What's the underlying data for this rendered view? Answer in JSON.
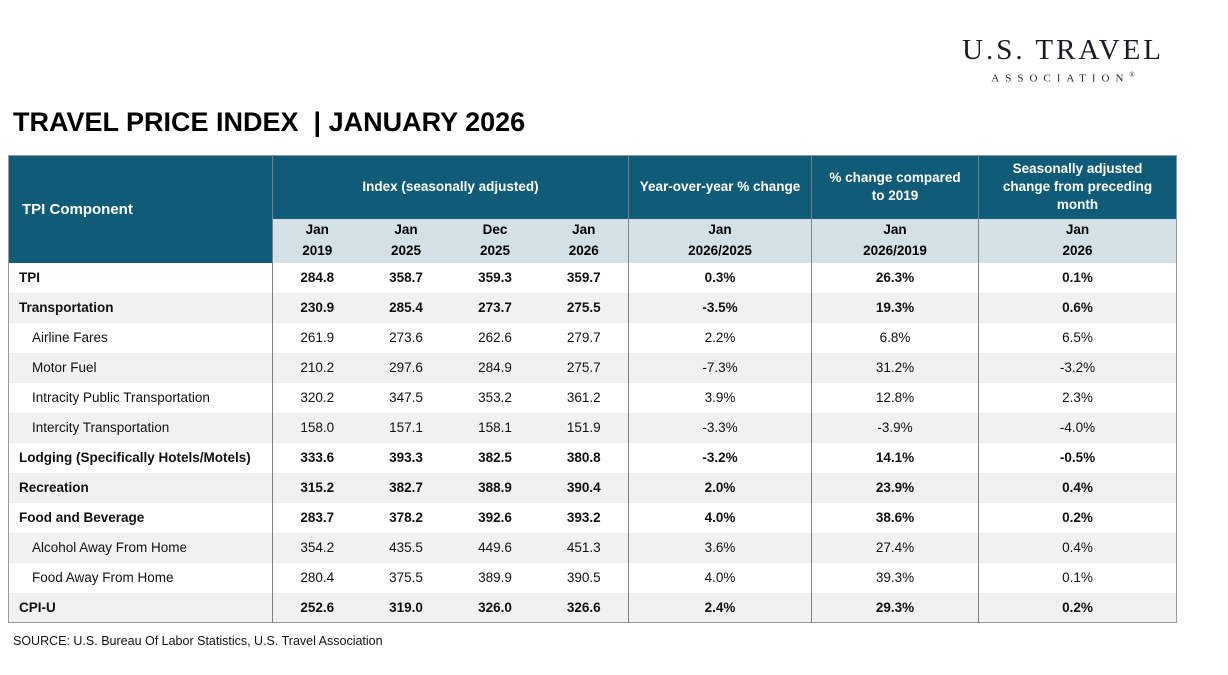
{
  "logo": {
    "line1": "U.S. TRAVEL",
    "line2": "ASSOCIATION",
    "registered": "®"
  },
  "title": "TRAVEL PRICE INDEX  | JANUARY 2026",
  "source": "SOURCE: U.S. Bureau Of Labor Statistics, U.S. Travel Association",
  "colors": {
    "header_teal": "#105C78",
    "subheader_band": "#D3E1E6",
    "row_stripe": "#F1F1F1",
    "grid_border": "#808080"
  },
  "table": {
    "component_header": "TPI Component",
    "groups": [
      {
        "label": "Index  (seasonally adjusted)",
        "subs": [
          [
            "Jan",
            "2019"
          ],
          [
            "Jan",
            "2025"
          ],
          [
            "Dec",
            "2025"
          ],
          [
            "Jan",
            "2026"
          ]
        ]
      },
      {
        "label": "Year-over-year % change",
        "subs": [
          [
            "Jan",
            "2026/2025"
          ]
        ]
      },
      {
        "label": "% change compared to 2019",
        "subs": [
          [
            "Jan",
            "2026/2019"
          ]
        ]
      },
      {
        "label": "Seasonally adjusted change from preceding month",
        "subs": [
          [
            "Jan",
            "2026"
          ]
        ]
      }
    ],
    "rows": [
      {
        "label": "TPI",
        "bold": true,
        "indent": false,
        "values": [
          "284.8",
          "358.7",
          "359.3",
          "359.7",
          "0.3%",
          "26.3%",
          "0.1%"
        ]
      },
      {
        "label": "Transportation",
        "bold": true,
        "indent": false,
        "values": [
          "230.9",
          "285.4",
          "273.7",
          "275.5",
          "-3.5%",
          "19.3%",
          "0.6%"
        ]
      },
      {
        "label": "Airline Fares",
        "bold": false,
        "indent": true,
        "values": [
          "261.9",
          "273.6",
          "262.6",
          "279.7",
          "2.2%",
          "6.8%",
          "6.5%"
        ]
      },
      {
        "label": "Motor Fuel",
        "bold": false,
        "indent": true,
        "values": [
          "210.2",
          "297.6",
          "284.9",
          "275.7",
          "-7.3%",
          "31.2%",
          "-3.2%"
        ]
      },
      {
        "label": "Intracity Public Transportation",
        "bold": false,
        "indent": true,
        "values": [
          "320.2",
          "347.5",
          "353.2",
          "361.2",
          "3.9%",
          "12.8%",
          "2.3%"
        ]
      },
      {
        "label": "Intercity Transportation",
        "bold": false,
        "indent": true,
        "values": [
          "158.0",
          "157.1",
          "158.1",
          "151.9",
          "-3.3%",
          "-3.9%",
          "-4.0%"
        ]
      },
      {
        "label": "Lodging (Specifically Hotels/Motels)",
        "bold": true,
        "indent": false,
        "values": [
          "333.6",
          "393.3",
          "382.5",
          "380.8",
          "-3.2%",
          "14.1%",
          "-0.5%"
        ]
      },
      {
        "label": "Recreation",
        "bold": true,
        "indent": false,
        "values": [
          "315.2",
          "382.7",
          "388.9",
          "390.4",
          "2.0%",
          "23.9%",
          "0.4%"
        ]
      },
      {
        "label": "Food and Beverage",
        "bold": true,
        "indent": false,
        "values": [
          "283.7",
          "378.2",
          "392.6",
          "393.2",
          "4.0%",
          "38.6%",
          "0.2%"
        ]
      },
      {
        "label": "Alcohol Away From Home",
        "bold": false,
        "indent": true,
        "values": [
          "354.2",
          "435.5",
          "449.6",
          "451.3",
          "3.6%",
          "27.4%",
          "0.4%"
        ]
      },
      {
        "label": "Food Away From Home",
        "bold": false,
        "indent": true,
        "values": [
          "280.4",
          "375.5",
          "389.9",
          "390.5",
          "4.0%",
          "39.3%",
          "0.1%"
        ]
      },
      {
        "label": "CPI-U",
        "bold": true,
        "indent": false,
        "values": [
          "252.6",
          "319.0",
          "326.0",
          "326.6",
          "2.4%",
          "29.3%",
          "0.2%"
        ]
      }
    ]
  }
}
